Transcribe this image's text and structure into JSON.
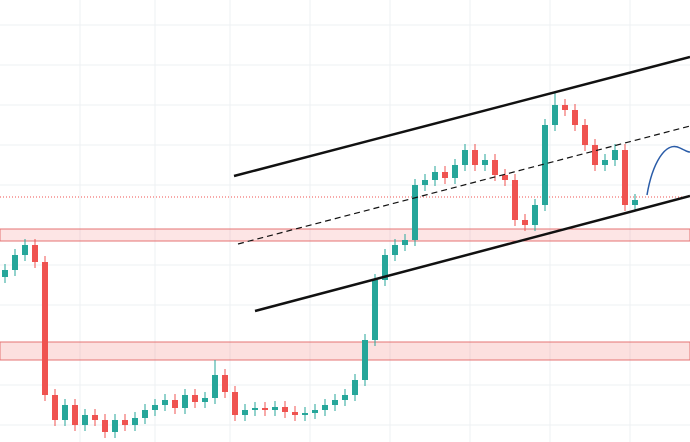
{
  "chart_data": {
    "type": "candlestick",
    "up_color": "#26a69a",
    "down_color": "#ef5350",
    "ylim": [
      0,
      442
    ],
    "open": [
      165,
      172,
      187,
      197,
      180,
      47,
      22,
      37,
      17,
      27,
      22,
      10,
      22,
      17,
      24,
      32,
      37,
      42,
      34,
      47,
      40,
      44,
      67,
      50,
      27,
      32,
      34,
      32,
      35,
      30,
      27,
      29,
      32,
      37,
      42,
      47,
      62,
      102,
      162,
      187,
      197,
      202,
      257,
      262,
      270,
      264,
      277,
      292,
      277,
      282,
      267,
      262,
      222,
      217,
      237,
      317,
      337,
      332,
      317,
      297,
      277,
      282,
      292,
      237
    ],
    "high": [
      178,
      193,
      203,
      203,
      186,
      53,
      43,
      43,
      33,
      33,
      28,
      28,
      28,
      30,
      38,
      43,
      48,
      48,
      53,
      53,
      50,
      82,
      73,
      56,
      38,
      40,
      40,
      41,
      41,
      36,
      35,
      38,
      43,
      48,
      53,
      68,
      108,
      168,
      193,
      203,
      208,
      263,
      268,
      276,
      276,
      283,
      298,
      298,
      288,
      288,
      273,
      268,
      228,
      243,
      323,
      350,
      343,
      338,
      323,
      303,
      288,
      298,
      298,
      248
    ],
    "low": [
      159,
      166,
      181,
      174,
      41,
      16,
      16,
      11,
      11,
      16,
      4,
      4,
      11,
      11,
      18,
      26,
      31,
      28,
      28,
      34,
      34,
      38,
      44,
      21,
      21,
      26,
      26,
      26,
      24,
      21,
      21,
      23,
      26,
      31,
      36,
      41,
      56,
      96,
      156,
      181,
      191,
      196,
      251,
      256,
      258,
      258,
      271,
      271,
      271,
      261,
      256,
      216,
      211,
      211,
      231,
      311,
      326,
      311,
      291,
      271,
      271,
      276,
      231,
      231
    ],
    "close": [
      172,
      187,
      197,
      180,
      47,
      22,
      37,
      17,
      27,
      22,
      10,
      22,
      17,
      24,
      32,
      37,
      42,
      34,
      47,
      40,
      44,
      67,
      50,
      27,
      32,
      34,
      32,
      35,
      30,
      27,
      29,
      32,
      37,
      42,
      47,
      62,
      102,
      162,
      187,
      197,
      202,
      257,
      262,
      270,
      264,
      277,
      292,
      277,
      282,
      267,
      262,
      222,
      217,
      237,
      317,
      337,
      332,
      317,
      297,
      277,
      282,
      292,
      237,
      242
    ]
  }
}
